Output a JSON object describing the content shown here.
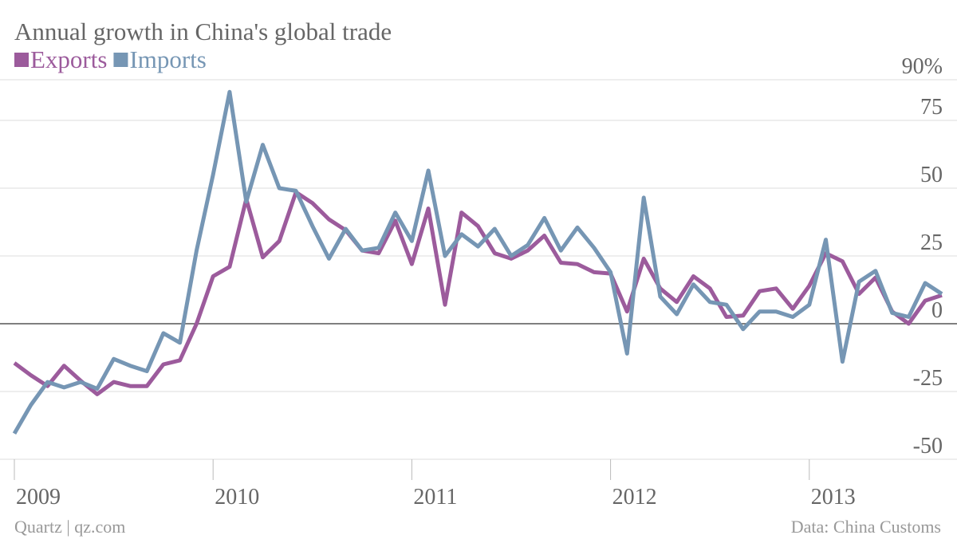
{
  "chart_data": {
    "type": "line",
    "title": "Annual growth in China's global trade",
    "source": "Data: China Customs",
    "credit": "Quartz | qz.com",
    "x": [
      2009,
      2009.083,
      2009.167,
      2009.25,
      2009.333,
      2009.417,
      2009.5,
      2009.583,
      2009.667,
      2009.75,
      2009.833,
      2009.917,
      2010,
      2010.083,
      2010.167,
      2010.25,
      2010.333,
      2010.417,
      2010.5,
      2010.583,
      2010.667,
      2010.75,
      2010.833,
      2010.917,
      2011,
      2011.083,
      2011.167,
      2011.25,
      2011.333,
      2011.417,
      2011.5,
      2011.583,
      2011.667,
      2011.75,
      2011.833,
      2011.917,
      2012,
      2012.083,
      2012.167,
      2012.25,
      2012.333,
      2012.417,
      2012.5,
      2012.583,
      2012.667,
      2012.75,
      2012.833,
      2012.917,
      2013,
      2013.083,
      2013.167,
      2013.25,
      2013.333,
      2013.417,
      2013.5,
      2013.583,
      2013.667
    ],
    "series": [
      {
        "name": "Exports",
        "color": "#9c5b9c",
        "values": [
          -14.5,
          -19,
          -23,
          -15.5,
          -21,
          -26,
          -21.5,
          -23,
          -23,
          -15,
          -13.5,
          0,
          17.5,
          21,
          46,
          24.5,
          30.5,
          48.5,
          44.5,
          38.5,
          34.5,
          27,
          26,
          38,
          22,
          42.5,
          7,
          41,
          36,
          26,
          24,
          27,
          32.5,
          22.5,
          22,
          19,
          18.5,
          4.5,
          24,
          13,
          8,
          17.5,
          13,
          2.5,
          3,
          12,
          13,
          5.5,
          14,
          26,
          23,
          11,
          17,
          4.5,
          0,
          8.5,
          10.5
        ]
      },
      {
        "name": "Imports",
        "color": "#7696b4",
        "values": [
          -40.5,
          -30,
          -21.5,
          -23.5,
          -21.5,
          -24,
          -13,
          -15.5,
          -17.5,
          -3.5,
          -7,
          27,
          55,
          85.5,
          45,
          66,
          50,
          49,
          36,
          24,
          35,
          27,
          28,
          41,
          30.5,
          56.5,
          25,
          33,
          28.5,
          35,
          25,
          29,
          39,
          27,
          35.5,
          28,
          19,
          -11,
          46.5,
          10,
          3.5,
          14.5,
          8,
          7,
          -2,
          4.5,
          4.5,
          2.5,
          7,
          31,
          -14,
          15.5,
          19.5,
          4,
          2.5,
          15,
          11
        ]
      }
    ],
    "xlim": [
      2009,
      2013.667
    ],
    "xticks": [
      2009,
      2010,
      2011,
      2012,
      2013
    ],
    "ylim": [
      -50,
      90
    ],
    "yticks": [
      -50,
      -25,
      0,
      25,
      50,
      75,
      {
        "value": 90,
        "label": "90%"
      }
    ],
    "grid": true
  }
}
